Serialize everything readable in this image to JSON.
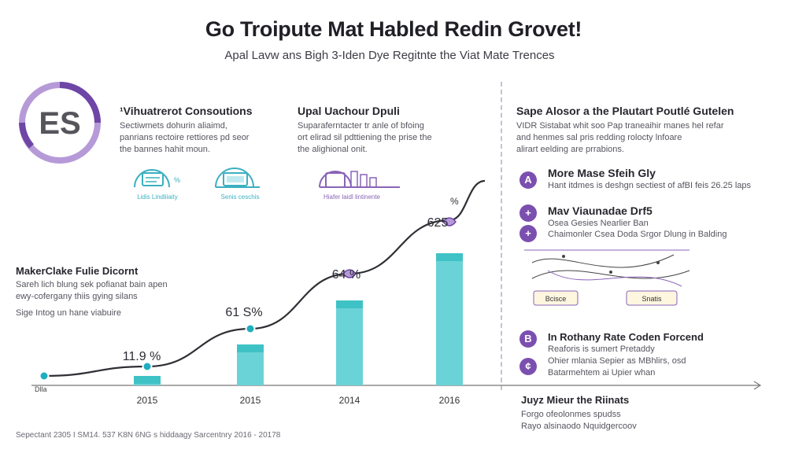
{
  "header": {
    "title": "Go Troipute Mat Habled Redin Grovet!",
    "subtitle": "Apal Lavw ans Bigh 3-Iden Dye Regitnte the Viat Mate Trences"
  },
  "logo": {
    "text": "ES",
    "colors": [
      "#6e46a6",
      "#b69ad8"
    ]
  },
  "col1": {
    "heading": "¹Vihuatrerot Consoutions",
    "body": [
      "Sectiwmets dohurin aliaimd,",
      "panrians rectoire rettiores pd seor",
      "the bannes hahit moun."
    ],
    "device_label": "Lidis Lindliiaity",
    "device2_label": "Senis ceschis"
  },
  "col2": {
    "heading": "Upal Uachour Dpuli",
    "body": [
      "Suparaferntacter tr anle of bfoing",
      "ort elirad sil pdttiening the prise the",
      "the alighional onit."
    ],
    "device_label": "Hiafer laidl lintinente"
  },
  "left_note": {
    "heading": "MakerClake Fulie Dicornt",
    "body": [
      "Sareh lich blung sek pofianat bain apen",
      "ewy-cofergany thiis gying silans",
      "Sige Intog un hane viabuire"
    ]
  },
  "right": {
    "heading": "Sape Alosor a the Plautart Poutlé Gutelen",
    "body": [
      "VIDR Sistabat whit soo Pap traneaihir manes hel refar",
      "and henmes sal pris redding rolocty lnfoare",
      "alirart eelding are prrabions."
    ],
    "features": [
      {
        "icon": "lock-icon",
        "glyph": "A",
        "title": "More Mase Sfeih Gly",
        "body": [
          "Hant itdmes is deshgn sectiest of afBI feis 26.25 laps"
        ]
      },
      {
        "icon": "plus-icon",
        "glyph": "+",
        "title": "Mav Viaunadae Drf5",
        "body": [
          "Osea Gesies Nearlier Ban"
        ]
      },
      {
        "icon": "plus-icon",
        "glyph": "+",
        "title": "",
        "body": [
          "Chaimonler Csea Doda Srgor Dlung in Balding"
        ]
      },
      {
        "icon": "target-icon",
        "glyph": "B",
        "title": "In Rothany Rate Coden Forcend",
        "body": [
          "Reaforis is sumert Pretaddy",
          "Ohier mlania Sepier as MBhlirs, osd",
          "Batarmehtem ai Upier whan"
        ]
      }
    ],
    "mini_diagram": {
      "box1": "Bcisce",
      "box2": "Snatis"
    }
  },
  "bottom_note": {
    "heading": "Juyz Mieur the Riinats",
    "body": [
      "Forgo ofeolonmes spudss",
      "Rayo alsinaodo Nquidgercoov"
    ]
  },
  "footer": "Sepectant 2305 I SM14. 537 K8N 6NG s hiddaagy Sarcentnry 2016 - 20178",
  "chart_data": {
    "type": "bar",
    "categories": [
      "2015",
      "2015",
      "2014",
      "2016"
    ],
    "values": [
      3,
      13,
      27,
      42
    ],
    "data_labels": [
      "11.9 %",
      "61 S%",
      "64 %",
      "625"
    ],
    "ylim": [
      0,
      60
    ],
    "trend_line_label": "Dlla",
    "trend_line_extra_label": "%",
    "colors": {
      "bar": "#6ad3d7",
      "bar_top": "#3fc2c6",
      "line": "#2f2f35",
      "point": "#1faebf",
      "accent": "#6e46a6"
    }
  }
}
